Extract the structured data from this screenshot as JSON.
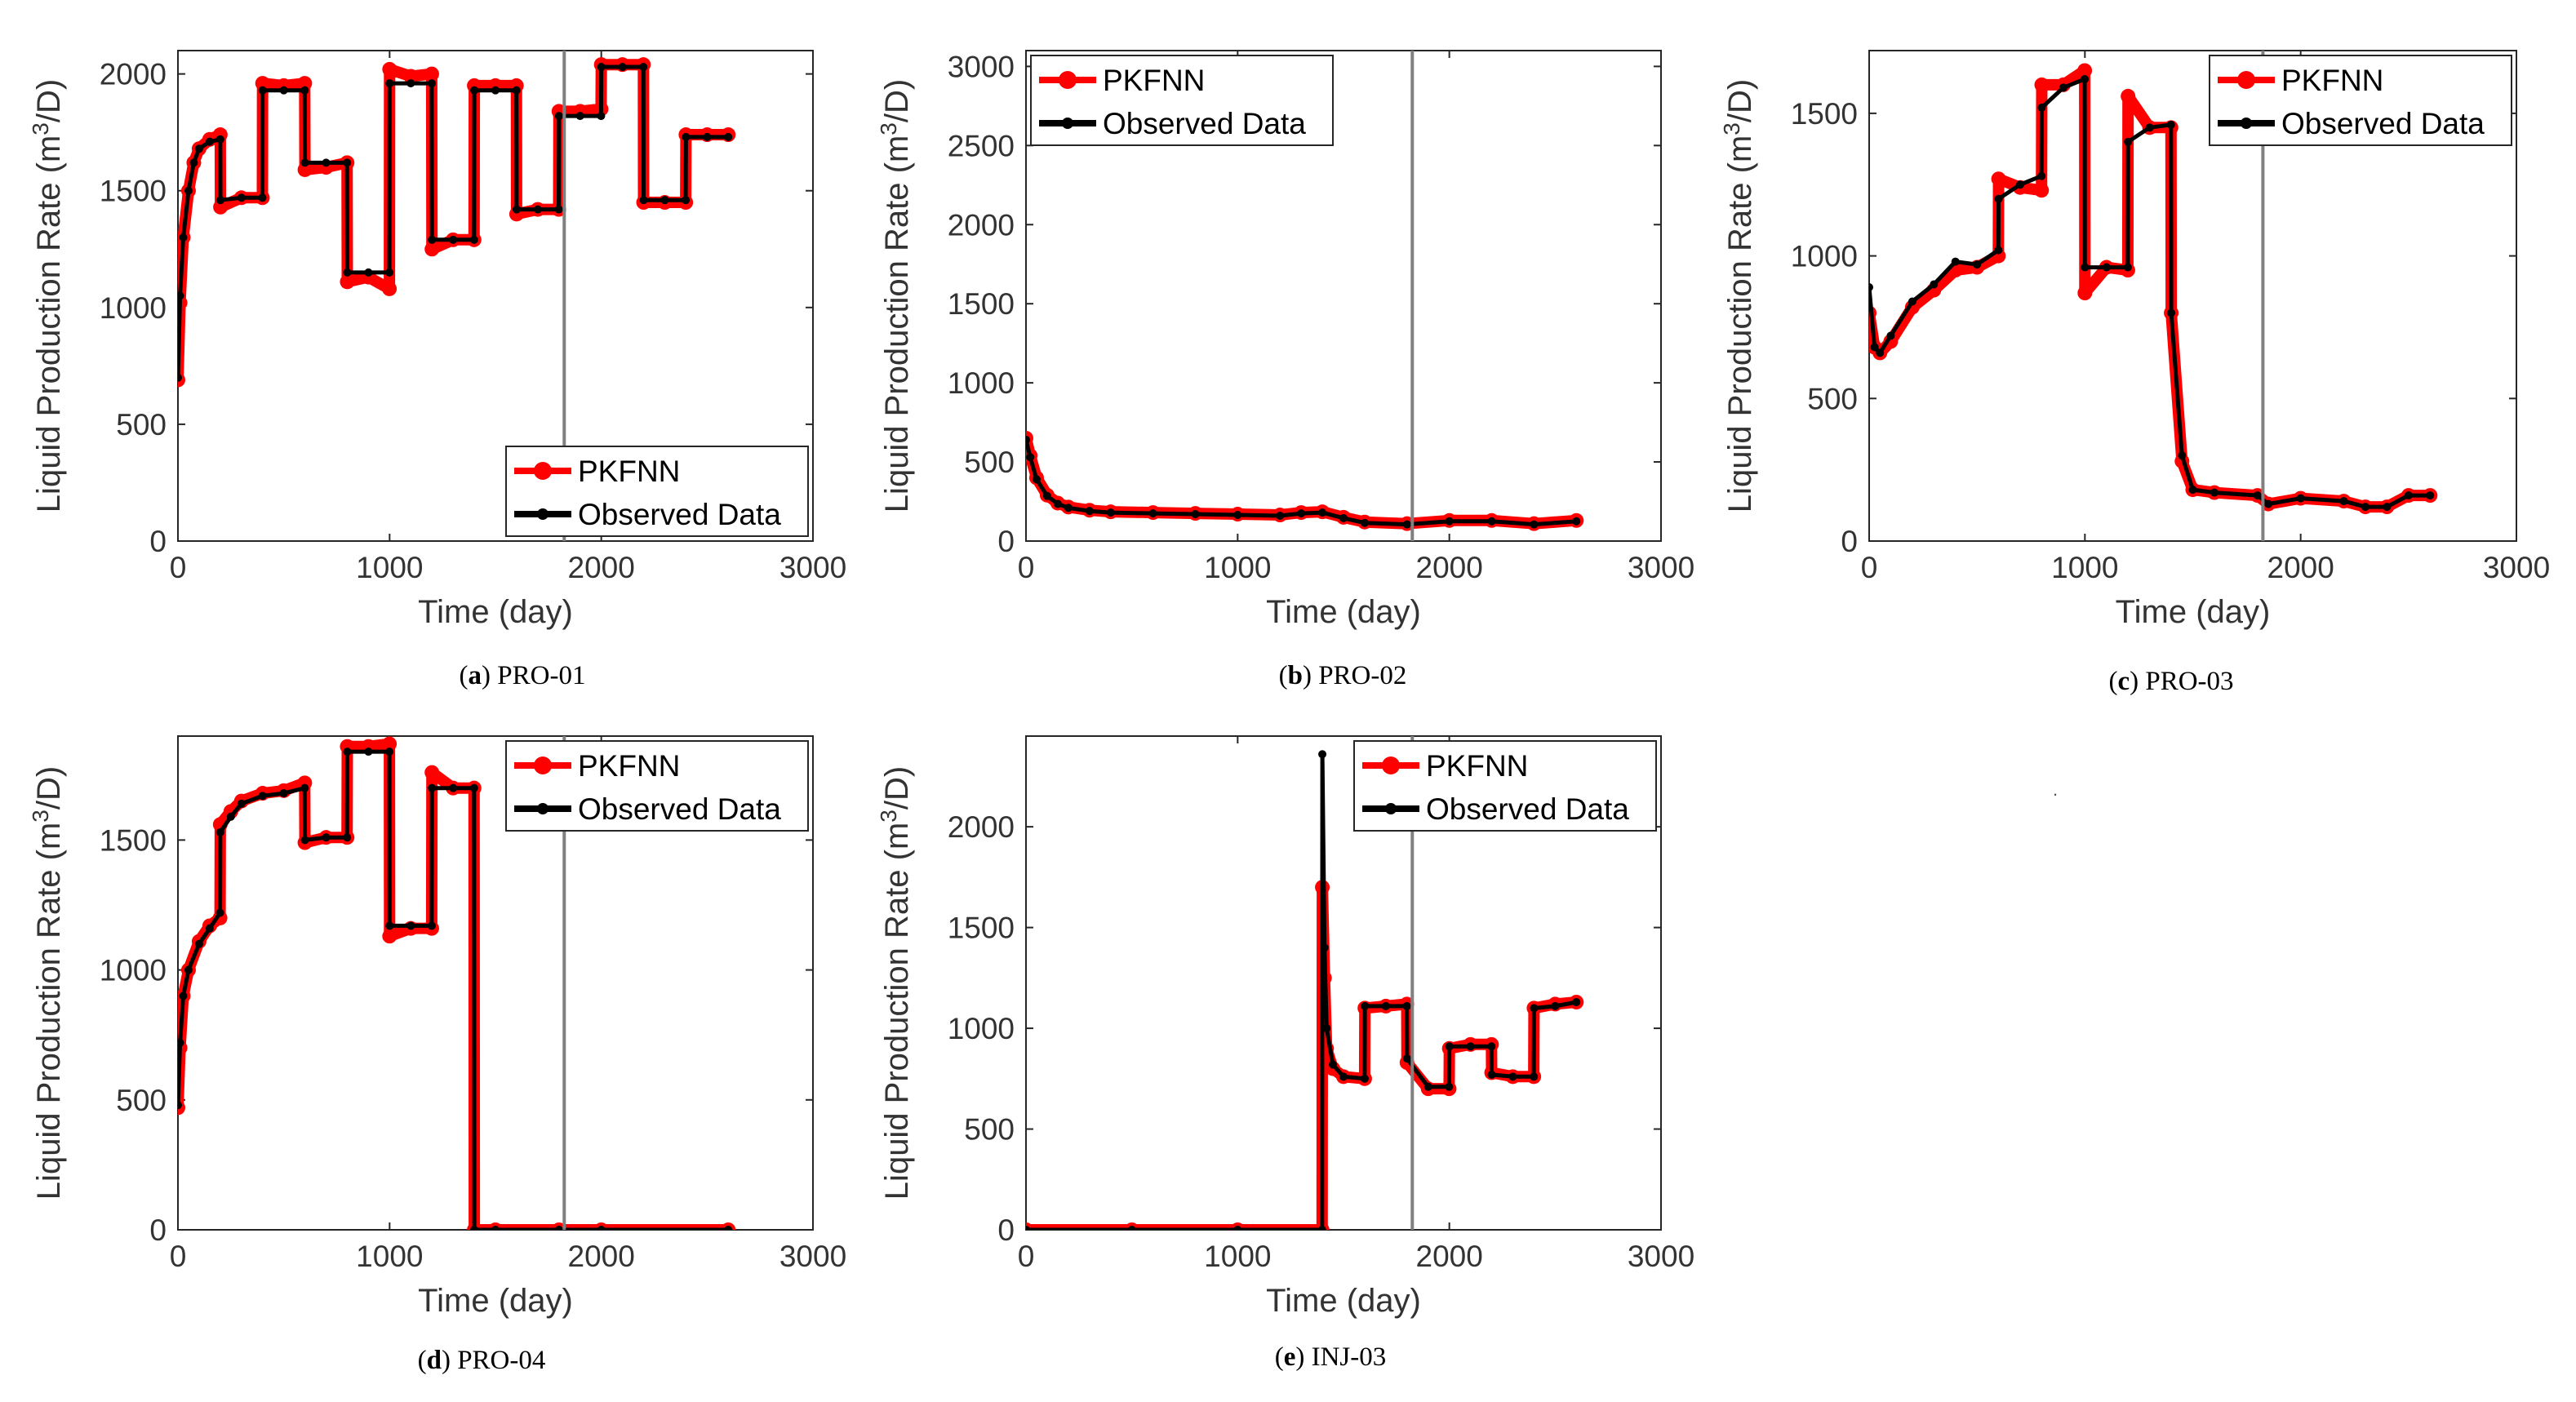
{
  "figure": {
    "stray_mark": "."
  },
  "charts": [
    {
      "key": "a",
      "type": "line",
      "caption_letter": "a",
      "caption_name": "PRO-01",
      "xlabel": "Time (day)",
      "ylabel_main": "Liquid Production Rate (m",
      "ylabel_sup": "3",
      "ylabel_tail": "/D)",
      "xlim": [
        0,
        3000
      ],
      "ylim": [
        0,
        2100
      ],
      "xticks": [
        0,
        1000,
        2000,
        3000
      ],
      "yticks": [
        0,
        500,
        1000,
        1500,
        2000
      ],
      "xtick_labels": [
        "0",
        "1000",
        "2000",
        "3000"
      ],
      "ytick_labels": [
        "0",
        "500",
        "1000",
        "1500",
        "2000"
      ],
      "vline_x": 1825,
      "legend_position": "bottom-right",
      "series": [
        {
          "name": "PKFNN",
          "color": "#ff0000",
          "x": [
            0,
            10,
            25,
            50,
            75,
            100,
            150,
            200,
            201,
            300,
            399,
            400,
            500,
            599,
            600,
            700,
            799,
            800,
            900,
            999,
            1000,
            1100,
            1199,
            1200,
            1300,
            1399,
            1400,
            1500,
            1599,
            1600,
            1700,
            1799,
            1800,
            1900,
            1999,
            2000,
            2100,
            2199,
            2200,
            2300,
            2399,
            2400,
            2500,
            2600
          ],
          "y": [
            690,
            1020,
            1300,
            1500,
            1620,
            1680,
            1720,
            1740,
            1430,
            1470,
            1470,
            1960,
            1950,
            1960,
            1590,
            1600,
            1620,
            1110,
            1130,
            1080,
            2020,
            1990,
            2000,
            1250,
            1290,
            1290,
            1950,
            1950,
            1950,
            1400,
            1420,
            1420,
            1840,
            1840,
            1850,
            2040,
            2040,
            2040,
            1450,
            1450,
            1450,
            1740,
            1740,
            1740
          ]
        },
        {
          "name": "Observed Data",
          "color": "#000000",
          "x": [
            0,
            10,
            25,
            50,
            75,
            100,
            150,
            200,
            201,
            300,
            399,
            400,
            500,
            599,
            600,
            700,
            799,
            800,
            900,
            999,
            1000,
            1100,
            1199,
            1200,
            1300,
            1399,
            1400,
            1500,
            1599,
            1600,
            1700,
            1799,
            1800,
            1900,
            1999,
            2000,
            2100,
            2199,
            2200,
            2300,
            2399,
            2400,
            2500,
            2600
          ],
          "y": [
            700,
            1050,
            1300,
            1500,
            1620,
            1680,
            1710,
            1720,
            1460,
            1470,
            1470,
            1930,
            1930,
            1930,
            1620,
            1620,
            1620,
            1150,
            1150,
            1150,
            1960,
            1960,
            1960,
            1290,
            1290,
            1290,
            1930,
            1930,
            1930,
            1420,
            1420,
            1420,
            1820,
            1820,
            1820,
            2030,
            2030,
            2030,
            1460,
            1460,
            1460,
            1730,
            1730,
            1730
          ]
        }
      ]
    },
    {
      "key": "b",
      "type": "line",
      "caption_letter": "b",
      "caption_name": "PRO-02",
      "xlabel": "Time (day)",
      "ylabel_main": "Liquid Production Rate (m",
      "ylabel_sup": "3",
      "ylabel_tail": "/D)",
      "xlim": [
        0,
        3000
      ],
      "ylim": [
        0,
        3100
      ],
      "xticks": [
        0,
        1000,
        2000,
        3000
      ],
      "yticks": [
        0,
        500,
        1000,
        1500,
        2000,
        2500,
        3000
      ],
      "xtick_labels": [
        "0",
        "1000",
        "2000",
        "3000"
      ],
      "ytick_labels": [
        "0",
        "500",
        "1000",
        "1500",
        "2000",
        "2500",
        "3000"
      ],
      "vline_x": 1825,
      "legend_position": "top-left",
      "series": [
        {
          "name": "PKFNN",
          "color": "#ff0000",
          "x": [
            0,
            20,
            50,
            100,
            150,
            200,
            300,
            400,
            600,
            800,
            1000,
            1200,
            1300,
            1400,
            1500,
            1600,
            1800,
            2000,
            2200,
            2400,
            2600
          ],
          "y": [
            650,
            540,
            400,
            290,
            240,
            215,
            195,
            185,
            180,
            175,
            170,
            165,
            180,
            185,
            150,
            120,
            110,
            130,
            130,
            110,
            130
          ]
        },
        {
          "name": "Observed Data",
          "color": "#000000",
          "x": [
            0,
            20,
            50,
            100,
            150,
            200,
            300,
            400,
            600,
            800,
            1000,
            1200,
            1300,
            1400,
            1500,
            1600,
            1800,
            2000,
            2200,
            2400,
            2600
          ],
          "y": [
            640,
            530,
            390,
            285,
            235,
            210,
            190,
            180,
            175,
            170,
            165,
            160,
            175,
            180,
            145,
            115,
            105,
            125,
            125,
            105,
            125
          ]
        }
      ]
    },
    {
      "key": "c",
      "type": "line",
      "caption_letter": "c",
      "caption_name": "PRO-03",
      "xlabel": "Time (day)",
      "ylabel_main": "Liquid Production Rate (m",
      "ylabel_sup": "3",
      "ylabel_tail": "/D)",
      "xlim": [
        0,
        3000
      ],
      "ylim": [
        0,
        1720
      ],
      "xticks": [
        0,
        1000,
        2000,
        3000
      ],
      "yticks": [
        0,
        500,
        1000,
        1500
      ],
      "xtick_labels": [
        "0",
        "1000",
        "2000",
        "3000"
      ],
      "ytick_labels": [
        "0",
        "500",
        "1000",
        "1500"
      ],
      "vline_x": 1825,
      "legend_position": "top-right",
      "series": [
        {
          "name": "PKFNN",
          "color": "#ff0000",
          "x": [
            0,
            25,
            50,
            100,
            200,
            300,
            400,
            500,
            599,
            600,
            700,
            799,
            800,
            900,
            999,
            1000,
            1100,
            1199,
            1200,
            1300,
            1399,
            1400,
            1450,
            1500,
            1600,
            1800,
            1850,
            2000,
            2200,
            2300,
            2400,
            2500,
            2600
          ],
          "y": [
            800,
            680,
            660,
            700,
            820,
            880,
            950,
            960,
            1000,
            1270,
            1240,
            1230,
            1600,
            1600,
            1650,
            870,
            960,
            950,
            1560,
            1450,
            1450,
            800,
            280,
            180,
            170,
            160,
            130,
            150,
            140,
            120,
            120,
            160,
            160
          ]
        },
        {
          "name": "Observed Data",
          "color": "#000000",
          "x": [
            0,
            25,
            50,
            100,
            200,
            300,
            400,
            500,
            599,
            600,
            700,
            799,
            800,
            900,
            999,
            1000,
            1100,
            1199,
            1200,
            1300,
            1399,
            1400,
            1450,
            1500,
            1600,
            1800,
            1850,
            2000,
            2200,
            2300,
            2400,
            2500,
            2600
          ],
          "y": [
            890,
            680,
            660,
            720,
            840,
            900,
            980,
            970,
            1020,
            1200,
            1250,
            1280,
            1520,
            1590,
            1620,
            960,
            960,
            960,
            1400,
            1450,
            1460,
            800,
            300,
            180,
            170,
            160,
            130,
            150,
            140,
            120,
            120,
            160,
            160
          ]
        }
      ]
    },
    {
      "key": "d",
      "type": "line",
      "caption_letter": "d",
      "caption_name": "PRO-04",
      "xlabel": "Time (day)",
      "ylabel_main": "Liquid Production Rate (m",
      "ylabel_sup": "3",
      "ylabel_tail": "/D)",
      "xlim": [
        0,
        3000
      ],
      "ylim": [
        0,
        1900
      ],
      "xticks": [
        0,
        1000,
        2000,
        3000
      ],
      "yticks": [
        0,
        500,
        1000,
        1500
      ],
      "xtick_labels": [
        "0",
        "1000",
        "2000",
        "3000"
      ],
      "ytick_labels": [
        "0",
        "500",
        "1000",
        "1500"
      ],
      "vline_x": 1825,
      "legend_position": "top-right",
      "series": [
        {
          "name": "PKFNN",
          "color": "#ff0000",
          "x": [
            0,
            10,
            25,
            50,
            100,
            150,
            199,
            200,
            250,
            300,
            400,
            500,
            599,
            600,
            700,
            799,
            800,
            900,
            999,
            1000,
            1100,
            1199,
            1200,
            1300,
            1399,
            1400,
            1500,
            1800,
            2000,
            2600
          ],
          "y": [
            470,
            700,
            900,
            1000,
            1110,
            1170,
            1200,
            1560,
            1610,
            1650,
            1680,
            1690,
            1720,
            1490,
            1510,
            1510,
            1860,
            1860,
            1870,
            1130,
            1160,
            1160,
            1760,
            1700,
            1700,
            0,
            0,
            0,
            0,
            0
          ]
        },
        {
          "name": "Observed Data",
          "color": "#000000",
          "x": [
            0,
            10,
            25,
            50,
            100,
            150,
            199,
            200,
            250,
            300,
            400,
            500,
            599,
            600,
            700,
            799,
            800,
            900,
            999,
            1000,
            1100,
            1199,
            1200,
            1300,
            1399,
            1400,
            1500,
            1800,
            2000,
            2600
          ],
          "y": [
            480,
            720,
            900,
            1000,
            1100,
            1160,
            1220,
            1530,
            1590,
            1640,
            1670,
            1680,
            1700,
            1500,
            1510,
            1510,
            1840,
            1840,
            1840,
            1170,
            1170,
            1170,
            1700,
            1700,
            1700,
            0,
            0,
            0,
            0,
            0
          ]
        }
      ]
    },
    {
      "key": "e",
      "type": "line",
      "caption_letter": "e",
      "caption_name": "INJ-03",
      "xlabel": "Time (day)",
      "ylabel_main": "Liquid Production Rate (m",
      "ylabel_sup": "3",
      "ylabel_tail": "/D)",
      "xlim": [
        0,
        3000
      ],
      "ylim": [
        0,
        2450
      ],
      "xticks": [
        0,
        1000,
        2000,
        3000
      ],
      "yticks": [
        0,
        500,
        1000,
        1500,
        2000
      ],
      "xtick_labels": [
        "0",
        "1000",
        "2000",
        "3000"
      ],
      "ytick_labels": [
        "0",
        "500",
        "1000",
        "1500",
        "2000"
      ],
      "vline_x": 1825,
      "legend_position": "top-right",
      "series": [
        {
          "name": "PKFNN",
          "color": "#ff0000",
          "x": [
            0,
            500,
            1000,
            1399,
            1400,
            1410,
            1420,
            1450,
            1500,
            1600,
            1601,
            1700,
            1799,
            1800,
            1900,
            1999,
            2000,
            2100,
            2199,
            2200,
            2300,
            2399,
            2400,
            2500,
            2600
          ],
          "y": [
            0,
            0,
            0,
            0,
            1700,
            1250,
            900,
            800,
            760,
            750,
            1100,
            1110,
            1120,
            830,
            700,
            700,
            900,
            920,
            920,
            780,
            760,
            760,
            1100,
            1120,
            1130
          ]
        },
        {
          "name": "Observed Data",
          "color": "#000000",
          "x": [
            0,
            500,
            1000,
            1399,
            1400,
            1410,
            1420,
            1450,
            1500,
            1600,
            1601,
            1700,
            1799,
            1800,
            1900,
            1999,
            2000,
            2100,
            2199,
            2200,
            2300,
            2399,
            2400,
            2500,
            2600
          ],
          "y": [
            0,
            0,
            0,
            0,
            2360,
            1400,
            1000,
            820,
            760,
            750,
            1110,
            1110,
            1110,
            850,
            710,
            710,
            910,
            910,
            910,
            770,
            760,
            760,
            1100,
            1110,
            1130
          ]
        }
      ]
    }
  ]
}
